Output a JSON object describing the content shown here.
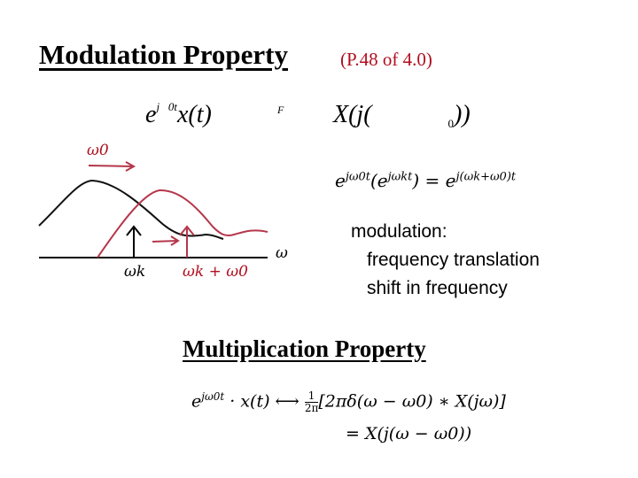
{
  "slide": {
    "title": "Modulation Property",
    "ref": "(P.48 of 4.0)"
  },
  "equation1": {
    "lhs_base": "e",
    "lhs_exp_j": "j",
    "lhs_exp_0t": "0t",
    "lhs_x": "x(t)",
    "F": "F",
    "rhs_X": "X(j(",
    "rhs_sub": "0",
    "rhs_close": "))"
  },
  "figure": {
    "omega0": "ω0",
    "omega": "ω",
    "omegak": "ωk",
    "omegak_plus": "ωk + ω0",
    "colors": {
      "original": "#000000",
      "shifted": "#b5364a"
    }
  },
  "equation2": {
    "e1": "e",
    "exp1": "jω0t",
    "paren_e": "(e",
    "exp2": "jωkt",
    "close_eq": ") = e",
    "exp3": "j(ωk+ω0)t"
  },
  "notes": {
    "line1": "modulation:",
    "line2": "frequency translation",
    "line3": "shift in frequency"
  },
  "multiplication": {
    "title": "Multiplication Property",
    "line1_a": "e",
    "line1_exp": "jω0t",
    "line1_b": " · x(t) ⟷ ",
    "frac_num": "1",
    "frac_den": "2π",
    "line1_c": "[2πδ(ω − ω0) ∗ X(jω)]",
    "line2": "= X(j(ω − ω0))"
  }
}
